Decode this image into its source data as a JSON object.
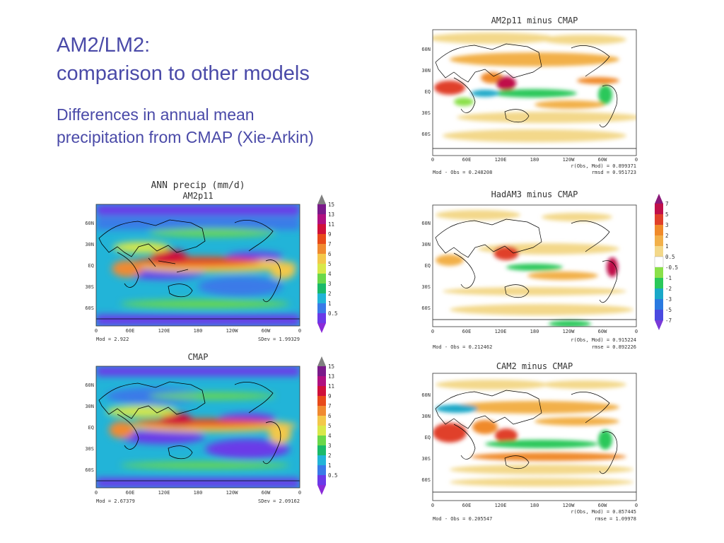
{
  "slide": {
    "title_line1": "AM2/LM2:",
    "title_line2": "comparison to other models",
    "subtitle_line1": "Differences in annual mean",
    "subtitle_line2": "precipitation from CMAP (Xie-Arkin)"
  },
  "lat_ticks": [
    "60N",
    "30N",
    "EQ",
    "30S",
    "60S"
  ],
  "lon_ticks": [
    "0",
    "60E",
    "120E",
    "180",
    "120W",
    "60W",
    "0"
  ],
  "abs_colorbar": {
    "labels": [
      "15",
      "13",
      "11",
      "9",
      "7",
      "6",
      "5",
      "4",
      "3",
      "2",
      "1",
      "0.5"
    ],
    "colors": [
      "#7a1a8a",
      "#b01080",
      "#d0103a",
      "#e84a1a",
      "#f08a30",
      "#f3c84a",
      "#d8e84a",
      "#6ad84a",
      "#1aba6a",
      "#22b4d8",
      "#3a7ae8",
      "#6a3ae8",
      "#8a2ad8"
    ]
  },
  "diff_colorbar": {
    "labels": [
      "7",
      "5",
      "3",
      "2",
      "1",
      "0.5",
      "-0.5",
      "-1",
      "-2",
      "-3",
      "-5",
      "-7"
    ],
    "colors": [
      "#8a1a7a",
      "#c0104a",
      "#e0402a",
      "#f08a2a",
      "#f2b04a",
      "#f3d88a",
      "#ffffff",
      "#8ae04a",
      "#2ac85a",
      "#1aa8c8",
      "#2a7ae0",
      "#4a4ae0",
      "#7a3ad8"
    ]
  },
  "maps": {
    "am2_abs": {
      "header": "ANN precip (mm/d)",
      "title": "AM2p11",
      "stat_left": "Mod = 2.922",
      "stat_right": "SDev = 1.99329"
    },
    "cmap_abs": {
      "title": "CMAP",
      "stat_left": "Mod = 2.67379",
      "stat_right": "SDev = 2.09162"
    },
    "am2_diff": {
      "title": "AM2p11 minus CMAP",
      "stat_r": "r(Obs, Mod) = 0.899371",
      "stat_left": "Mod - Obs = 0.248208",
      "stat_right": "rmsd = 0.951723"
    },
    "had_diff": {
      "title": "HadAM3 minus CMAP",
      "stat_r": "r(Obs, Mod) = 0.915224",
      "stat_left": "Mod - Obs = 0.212462",
      "stat_right": "rmse = 0.892226"
    },
    "cam_diff": {
      "title": "CAM2 minus CMAP",
      "stat_r": "r(Obs, Mod) = 0.857445",
      "stat_left": "Mod - Obs = 0.205547",
      "stat_right": "rmse = 1.09978"
    }
  }
}
